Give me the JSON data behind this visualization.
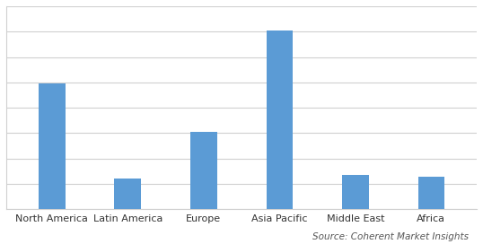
{
  "categories": [
    "North America",
    "Latin America",
    "Europe",
    "Asia Pacific",
    "Middle East",
    "Africa"
  ],
  "values": [
    62,
    15,
    38,
    88,
    17,
    16
  ],
  "bar_color": "#5b9bd5",
  "background_color": "#ffffff",
  "grid_color": "#d0d0d0",
  "source_text": "Source: Coherent Market Insights",
  "source_fontsize": 7.5,
  "label_fontsize": 8,
  "ylim": [
    0,
    100
  ],
  "bar_width": 0.35,
  "figsize": [
    5.38,
    2.72
  ],
  "dpi": 100
}
